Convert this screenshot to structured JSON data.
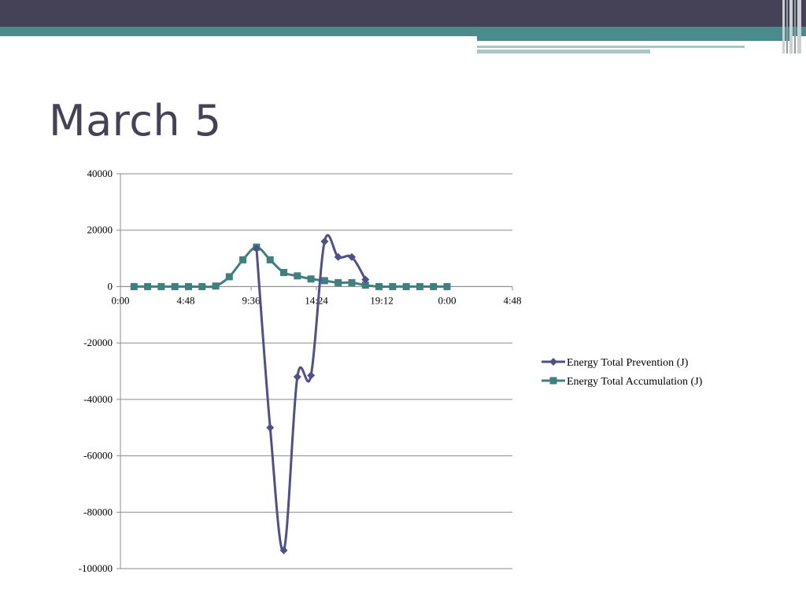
{
  "slide": {
    "title": "March 5"
  },
  "theme": {
    "header_dark": "#454258",
    "header_teal": "#4a8b8c",
    "series1_color": "#4f4f8c",
    "series2_color": "#3e7f7f"
  },
  "chart_data": {
    "type": "line",
    "title": "",
    "xlabel": "",
    "ylabel": "",
    "x_unit": "hours",
    "xlim": [
      0,
      28.8
    ],
    "ylim": [
      -100000,
      40000
    ],
    "x_ticks": [
      0,
      4.8,
      9.6,
      14.4,
      19.2,
      24,
      28.8
    ],
    "x_tick_labels": [
      "0:00",
      "4:48",
      "9:36",
      "14:24",
      "19:12",
      "0:00",
      "4:48"
    ],
    "y_ticks": [
      40000,
      20000,
      0,
      -20000,
      -40000,
      -60000,
      -80000,
      -100000
    ],
    "y_tick_labels": [
      "40000",
      "20000",
      "0",
      "-20000",
      "-40000",
      "-60000",
      "-80000",
      "-100000"
    ],
    "grid": true,
    "legend_position": "right",
    "series": [
      {
        "name": "Energy Total Prevention (J)",
        "marker": "diamond",
        "x": [
          10.0,
          11.0,
          12.0,
          13.0,
          14.0,
          15.0,
          16.0,
          17.0,
          18.0
        ],
        "y": [
          13500,
          -50000,
          -93500,
          -32000,
          -31500,
          16000,
          10500,
          10500,
          2500
        ]
      },
      {
        "name": "Energy Total Accumulation (J)",
        "marker": "square",
        "x": [
          1,
          2,
          3,
          4,
          5,
          6,
          7,
          8,
          9,
          10,
          11,
          12,
          13,
          14,
          15,
          16,
          17,
          18,
          19,
          20,
          21,
          22,
          23,
          24
        ],
        "y": [
          0,
          0,
          0,
          0,
          0,
          0,
          200,
          3500,
          9500,
          14000,
          9500,
          5000,
          3800,
          2700,
          2100,
          1400,
          1400,
          500,
          0,
          0,
          0,
          0,
          0,
          0
        ]
      }
    ]
  }
}
